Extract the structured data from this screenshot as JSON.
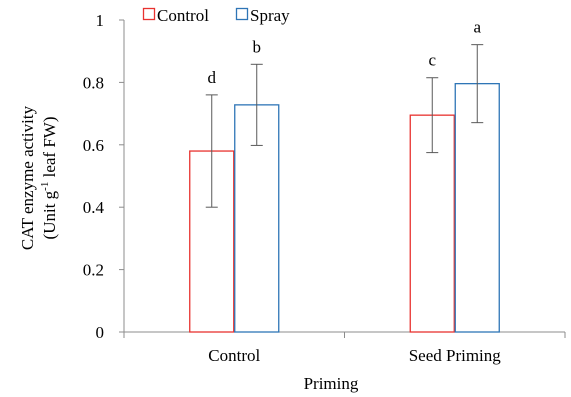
{
  "chart_data": {
    "type": "bar",
    "categories": [
      "Control",
      "Seed Priming"
    ],
    "series": [
      {
        "name": "Control",
        "color": "#e8322f",
        "values": [
          0.58,
          0.695
        ],
        "errors": [
          0.18,
          0.12
        ],
        "labels": [
          "d",
          "c"
        ]
      },
      {
        "name": "Spray",
        "color": "#2e75b6",
        "values": [
          0.728,
          0.796
        ],
        "errors": [
          0.13,
          0.125
        ],
        "labels": [
          "b",
          "a"
        ]
      }
    ],
    "xlabel": "Priming",
    "ylabel_line1": "CAT enzyme activity",
    "ylabel_line2_pre": "(Unit g",
    "ylabel_line2_sup": "-1",
    "ylabel_line2_post": " leaf FW)",
    "ylim": [
      0,
      1
    ],
    "yticks": [
      "0",
      "0.2",
      "0.4",
      "0.6",
      "0.8",
      "1"
    ],
    "yticks_values": [
      0,
      0.2,
      0.4,
      0.6,
      0.8,
      1
    ],
    "grid": false,
    "legend_position": "top-left",
    "axis_color": "#8c8c8c",
    "error_bar_color": "#595959"
  }
}
